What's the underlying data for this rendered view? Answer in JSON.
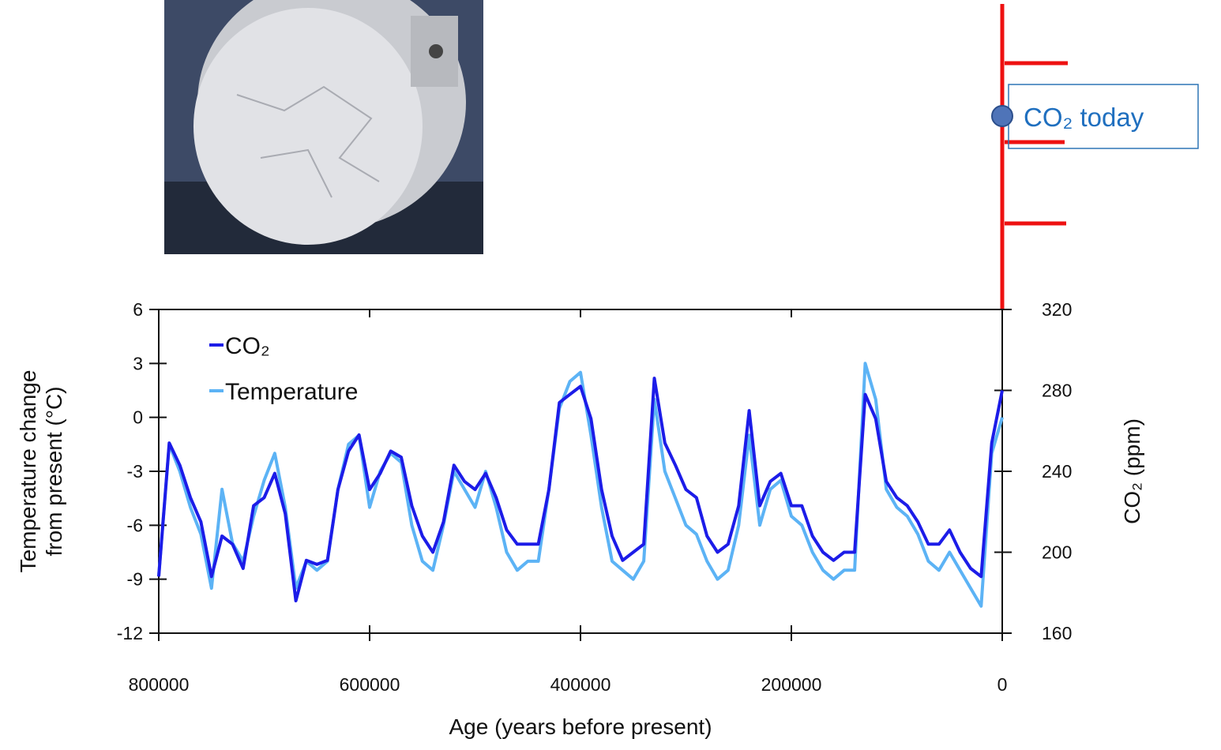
{
  "chart_data": {
    "type": "line",
    "xlabel": "Age (years before present)",
    "ylabel": [
      "Temperature change",
      "from present (°C)"
    ],
    "y2label": "CO₂ (ppm)",
    "xlim": [
      800000,
      0
    ],
    "xticks": [
      800000,
      600000,
      400000,
      200000,
      0
    ],
    "ylim": [
      -12,
      6
    ],
    "yticks": [
      -12,
      -9,
      -6,
      -3,
      0,
      3,
      6
    ],
    "y2lim": [
      160,
      320
    ],
    "y2ticks": [
      160,
      200,
      240,
      280,
      320
    ],
    "x": [
      800000,
      790000,
      780000,
      770000,
      760000,
      750000,
      740000,
      730000,
      720000,
      710000,
      700000,
      690000,
      680000,
      670000,
      660000,
      650000,
      640000,
      630000,
      620000,
      610000,
      600000,
      590000,
      580000,
      570000,
      560000,
      550000,
      540000,
      530000,
      520000,
      510000,
      500000,
      490000,
      480000,
      470000,
      460000,
      450000,
      440000,
      430000,
      420000,
      410000,
      400000,
      390000,
      380000,
      370000,
      360000,
      350000,
      340000,
      330000,
      320000,
      310000,
      300000,
      290000,
      280000,
      270000,
      260000,
      250000,
      240000,
      230000,
      220000,
      210000,
      200000,
      190000,
      180000,
      170000,
      160000,
      150000,
      140000,
      130000,
      120000,
      110000,
      100000,
      90000,
      80000,
      70000,
      60000,
      50000,
      40000,
      30000,
      20000,
      10000,
      0
    ],
    "series": [
      {
        "name": "CO₂",
        "color": "#1c1ce8",
        "axis": "y2",
        "values": [
          188,
          254,
          243,
          227,
          215,
          188,
          208,
          204,
          192,
          223,
          227,
          239,
          219,
          176,
          196,
          194,
          196,
          231,
          250,
          258,
          231,
          239,
          250,
          247,
          223,
          208,
          200,
          215,
          243,
          235,
          231,
          239,
          227,
          211,
          204,
          204,
          204,
          231,
          274,
          278,
          282,
          266,
          231,
          208,
          196,
          200,
          204,
          286,
          254,
          243,
          231,
          227,
          208,
          200,
          204,
          223,
          270,
          223,
          235,
          239,
          223,
          223,
          208,
          200,
          196,
          200,
          200,
          278,
          266,
          235,
          227,
          223,
          215,
          204,
          204,
          211,
          200,
          192,
          188,
          254,
          280
        ]
      },
      {
        "name": "Temperature",
        "color": "#5cb3f5",
        "values": [
          -8.8,
          -1.5,
          -3,
          -5,
          -6.5,
          -9.5,
          -4,
          -7,
          -8,
          -5.5,
          -3.5,
          -2,
          -5,
          -9.5,
          -8,
          -8.5,
          -8,
          -4,
          -1.5,
          -1,
          -5,
          -3,
          -2,
          -2.5,
          -6,
          -8,
          -8.5,
          -6,
          -3,
          -4,
          -5,
          -3,
          -5,
          -7.5,
          -8.5,
          -8,
          -8,
          -4,
          0.5,
          2,
          2.5,
          -1,
          -5,
          -8,
          -8.5,
          -9,
          -8,
          1,
          -3,
          -4.5,
          -6,
          -6.5,
          -8,
          -9,
          -8.5,
          -6,
          -1,
          -6,
          -4,
          -3.5,
          -5.5,
          -6,
          -7.5,
          -8.5,
          -9,
          -8.5,
          -8.5,
          3,
          1,
          -4,
          -5,
          -5.5,
          -6.5,
          -8,
          -8.5,
          -7.5,
          -8.5,
          -9.5,
          -10.5,
          -2,
          0
        ]
      }
    ]
  },
  "callout": "CO₂ today"
}
